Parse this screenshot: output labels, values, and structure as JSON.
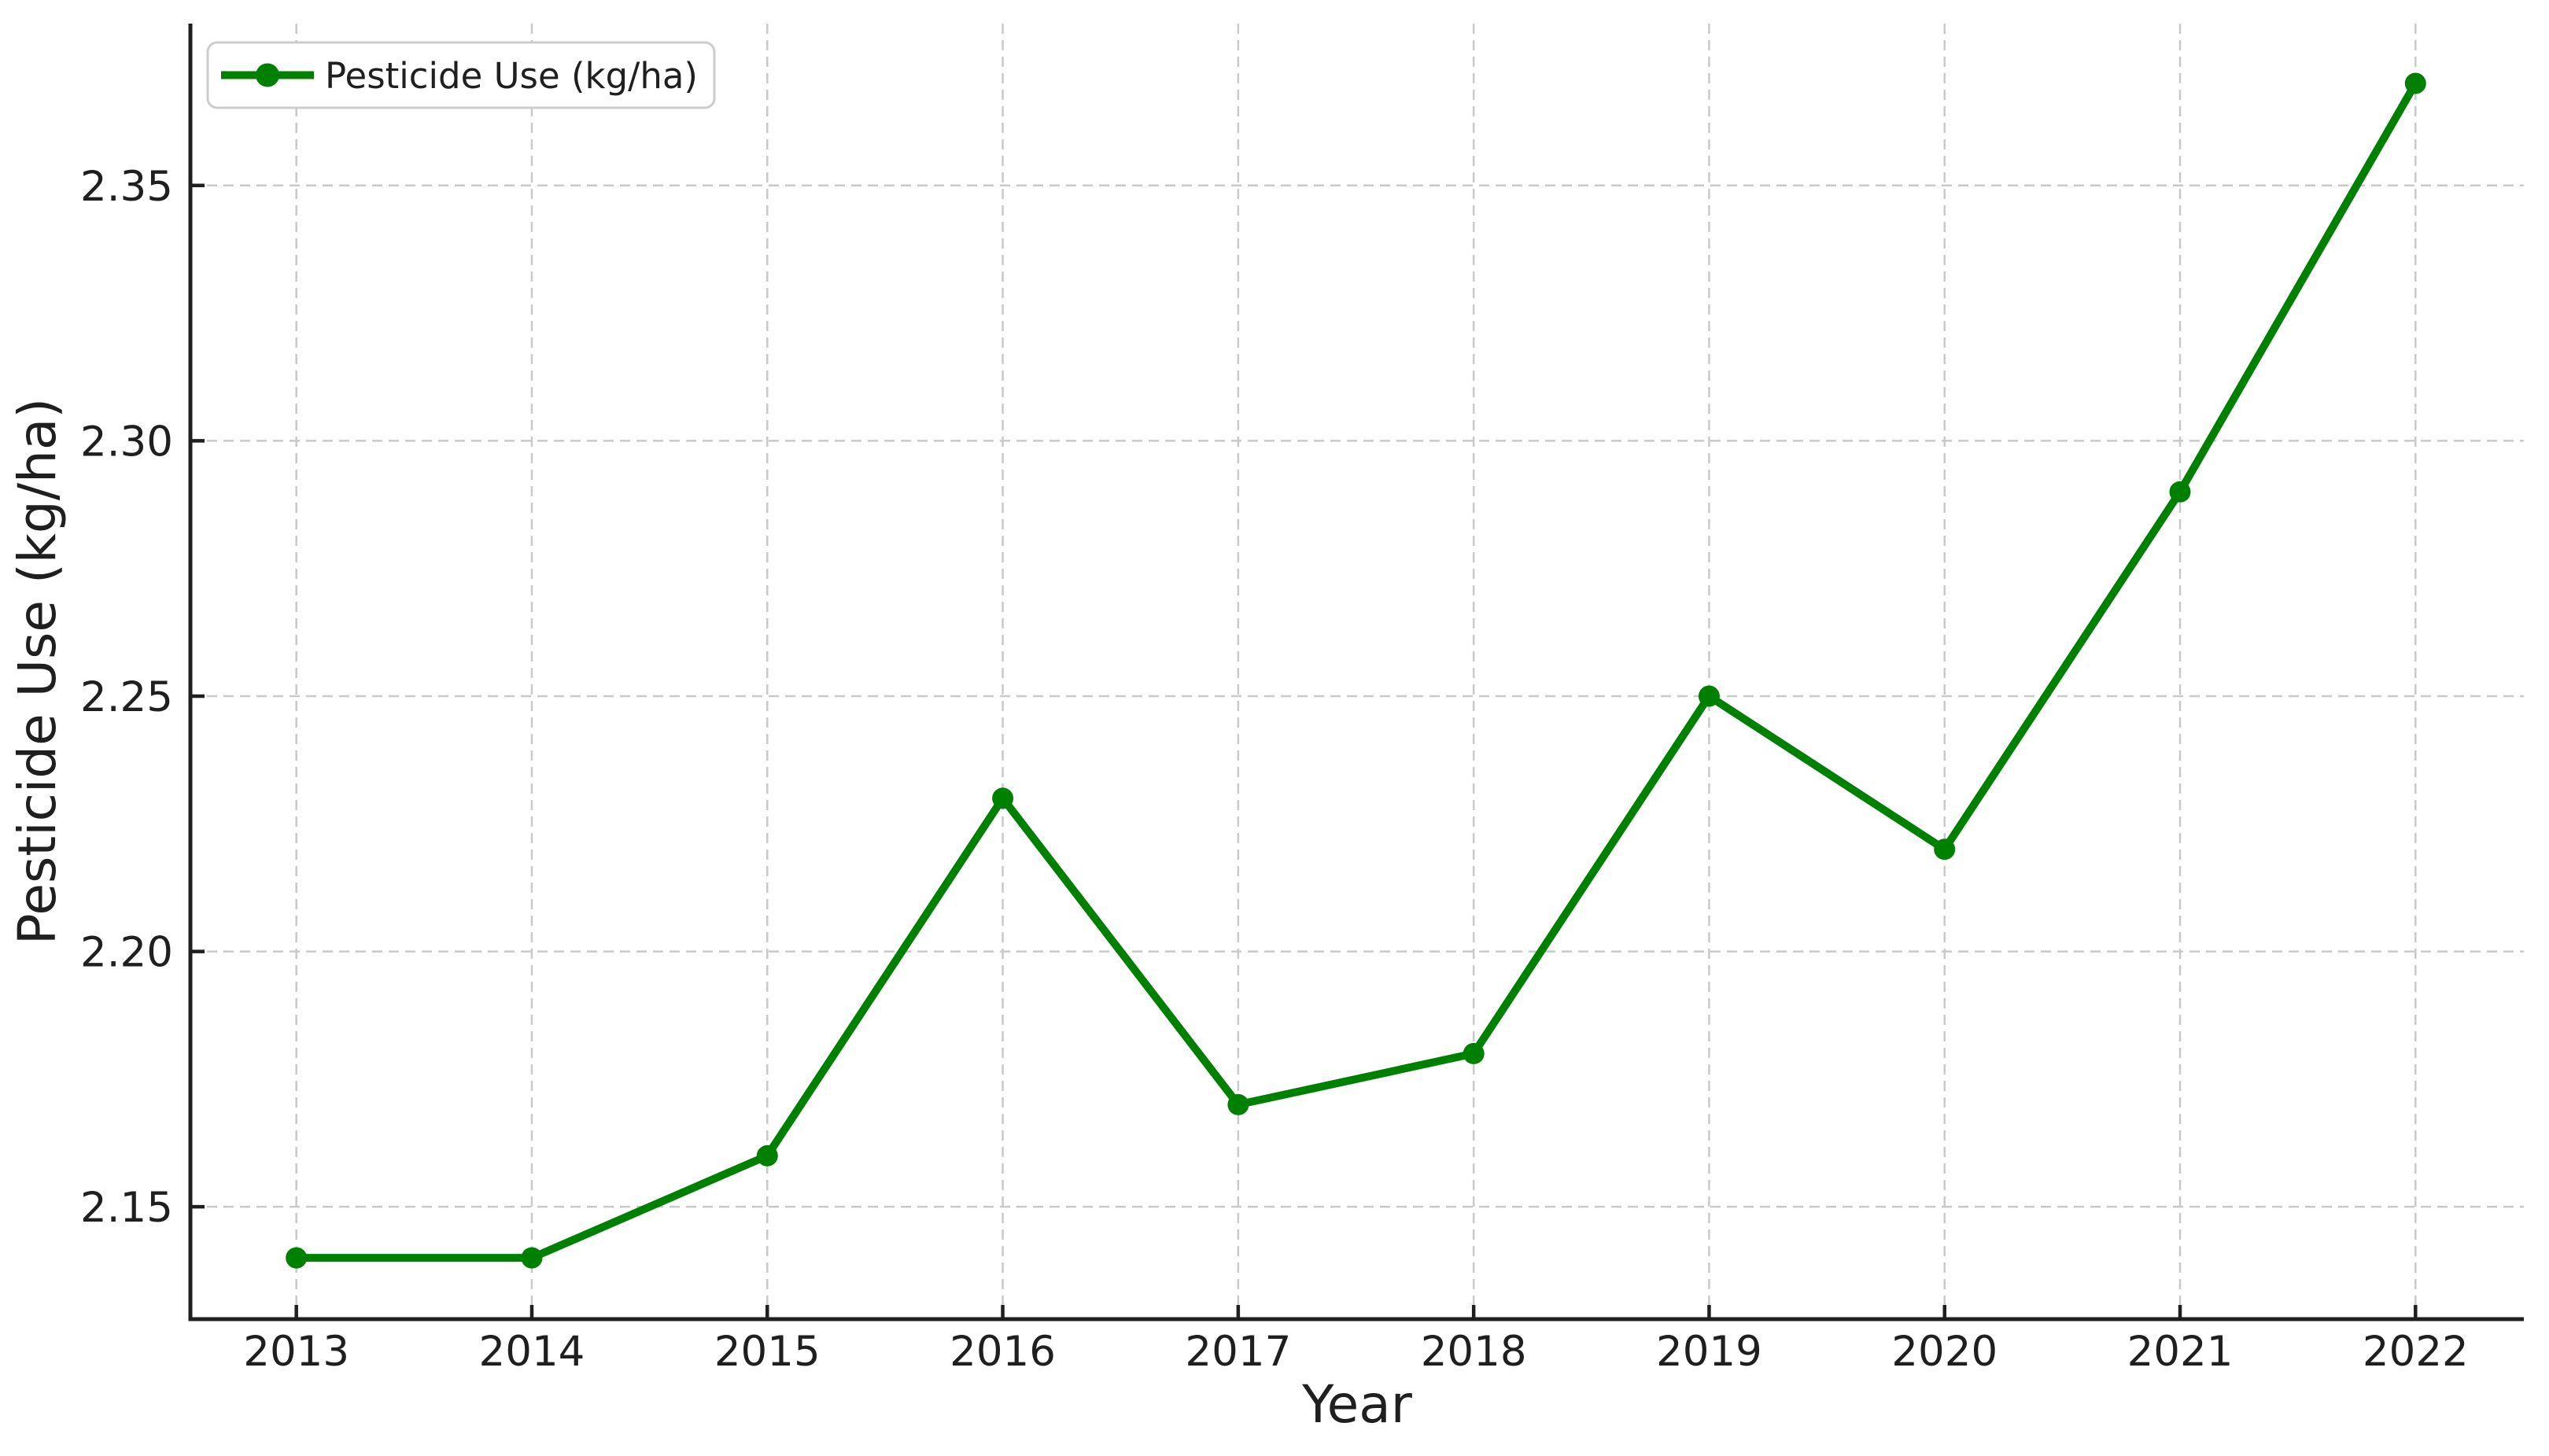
{
  "styles": {
    "background": "#ffffff",
    "line_color": "#008000",
    "grid_color": "#c9c9c9",
    "spine_color": "#1f1f1f",
    "tick_color": "#1f1f1f",
    "text_color": "#1f1f1f",
    "legend_border_color": "#cccccc",
    "legend_background": "#ffffff"
  },
  "chart_data": {
    "type": "line",
    "title": "",
    "xlabel": "Year",
    "ylabel": "Pesticide Use (kg/ha)",
    "categories": [
      2013,
      2014,
      2015,
      2016,
      2017,
      2018,
      2019,
      2020,
      2021,
      2022
    ],
    "xtick_labels": [
      "2013",
      "2014",
      "2015",
      "2016",
      "2017",
      "2018",
      "2019",
      "2020",
      "2021",
      "2022"
    ],
    "yticks": [
      2.15,
      2.2,
      2.25,
      2.3,
      2.35
    ],
    "ytick_labels": [
      "2.15",
      "2.20",
      "2.25",
      "2.30",
      "2.35"
    ],
    "xlim": [
      2012.55,
      2022.46
    ],
    "ylim": [
      2.128,
      2.3817
    ],
    "grid": true,
    "grid_linestyle": "dashed",
    "legend_position": "upper left",
    "series": [
      {
        "name": "Pesticide Use (kg/ha)",
        "color": "#008000",
        "marker": "circle",
        "values": [
          2.14,
          2.14,
          2.16,
          2.23,
          2.17,
          2.18,
          2.25,
          2.22,
          2.29,
          2.37
        ]
      }
    ]
  }
}
